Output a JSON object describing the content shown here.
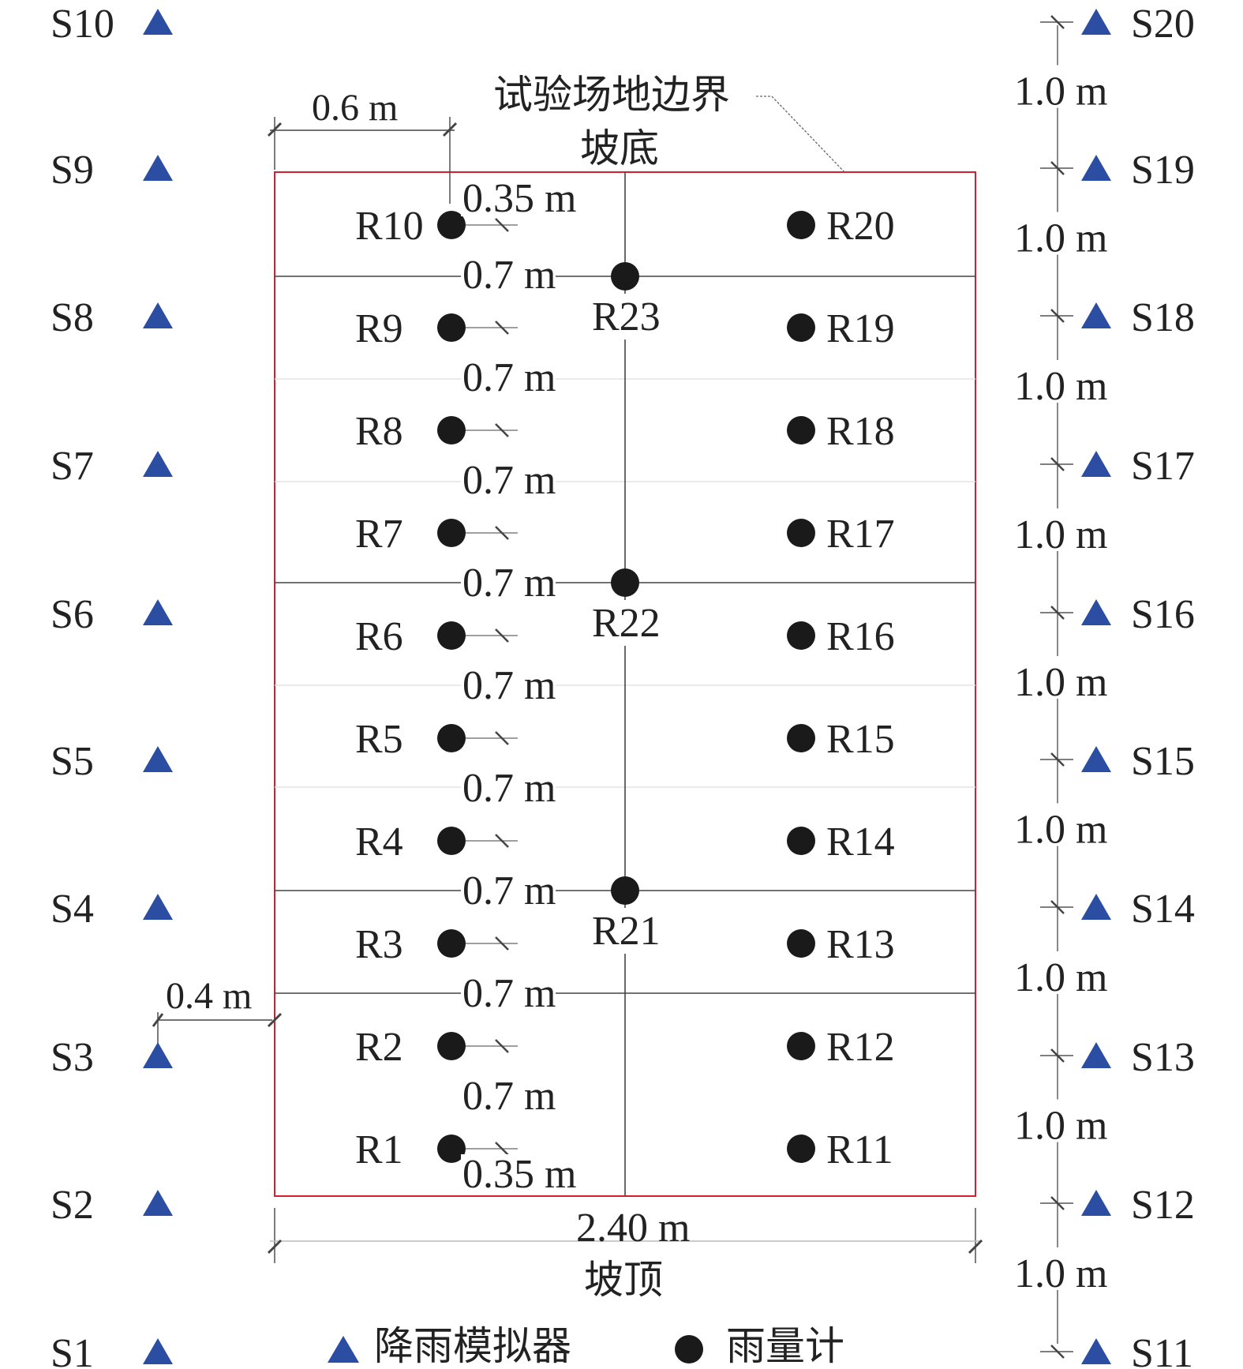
{
  "diagram": {
    "boundary_label": "试验场地边界",
    "slope_bottom_label": "坡底",
    "slope_top_label": "坡顶",
    "width_label": "2.40 m",
    "left_offset_label": "0.6 m",
    "sim_offset_label": "0.4 m",
    "edge_spacing_label": "0.35 m",
    "row_spacing_label": "0.7 m",
    "sim_spacing_label": "1.0 m",
    "left_simulators": [
      "S10",
      "S9",
      "S8",
      "S7",
      "S6",
      "S5",
      "S4",
      "S3",
      "S2",
      "S1"
    ],
    "right_simulators": [
      "S20",
      "S19",
      "S18",
      "S17",
      "S16",
      "S15",
      "S14",
      "S13",
      "S12",
      "S11"
    ],
    "left_gauges": [
      "R10",
      "R9",
      "R8",
      "R7",
      "R6",
      "R5",
      "R4",
      "R3",
      "R2",
      "R1"
    ],
    "right_gauges": [
      "R20",
      "R19",
      "R18",
      "R17",
      "R16",
      "R15",
      "R14",
      "R13",
      "R12",
      "R11"
    ],
    "center_gauges": [
      "R23",
      "R22",
      "R21"
    ]
  },
  "legend": {
    "simulator_label": "降雨模拟器",
    "gauge_label": "雨量计"
  },
  "colors": {
    "boundary": "#d81e2c",
    "simulator": "#2b4ea2",
    "gauge": "#1a1a1a"
  }
}
